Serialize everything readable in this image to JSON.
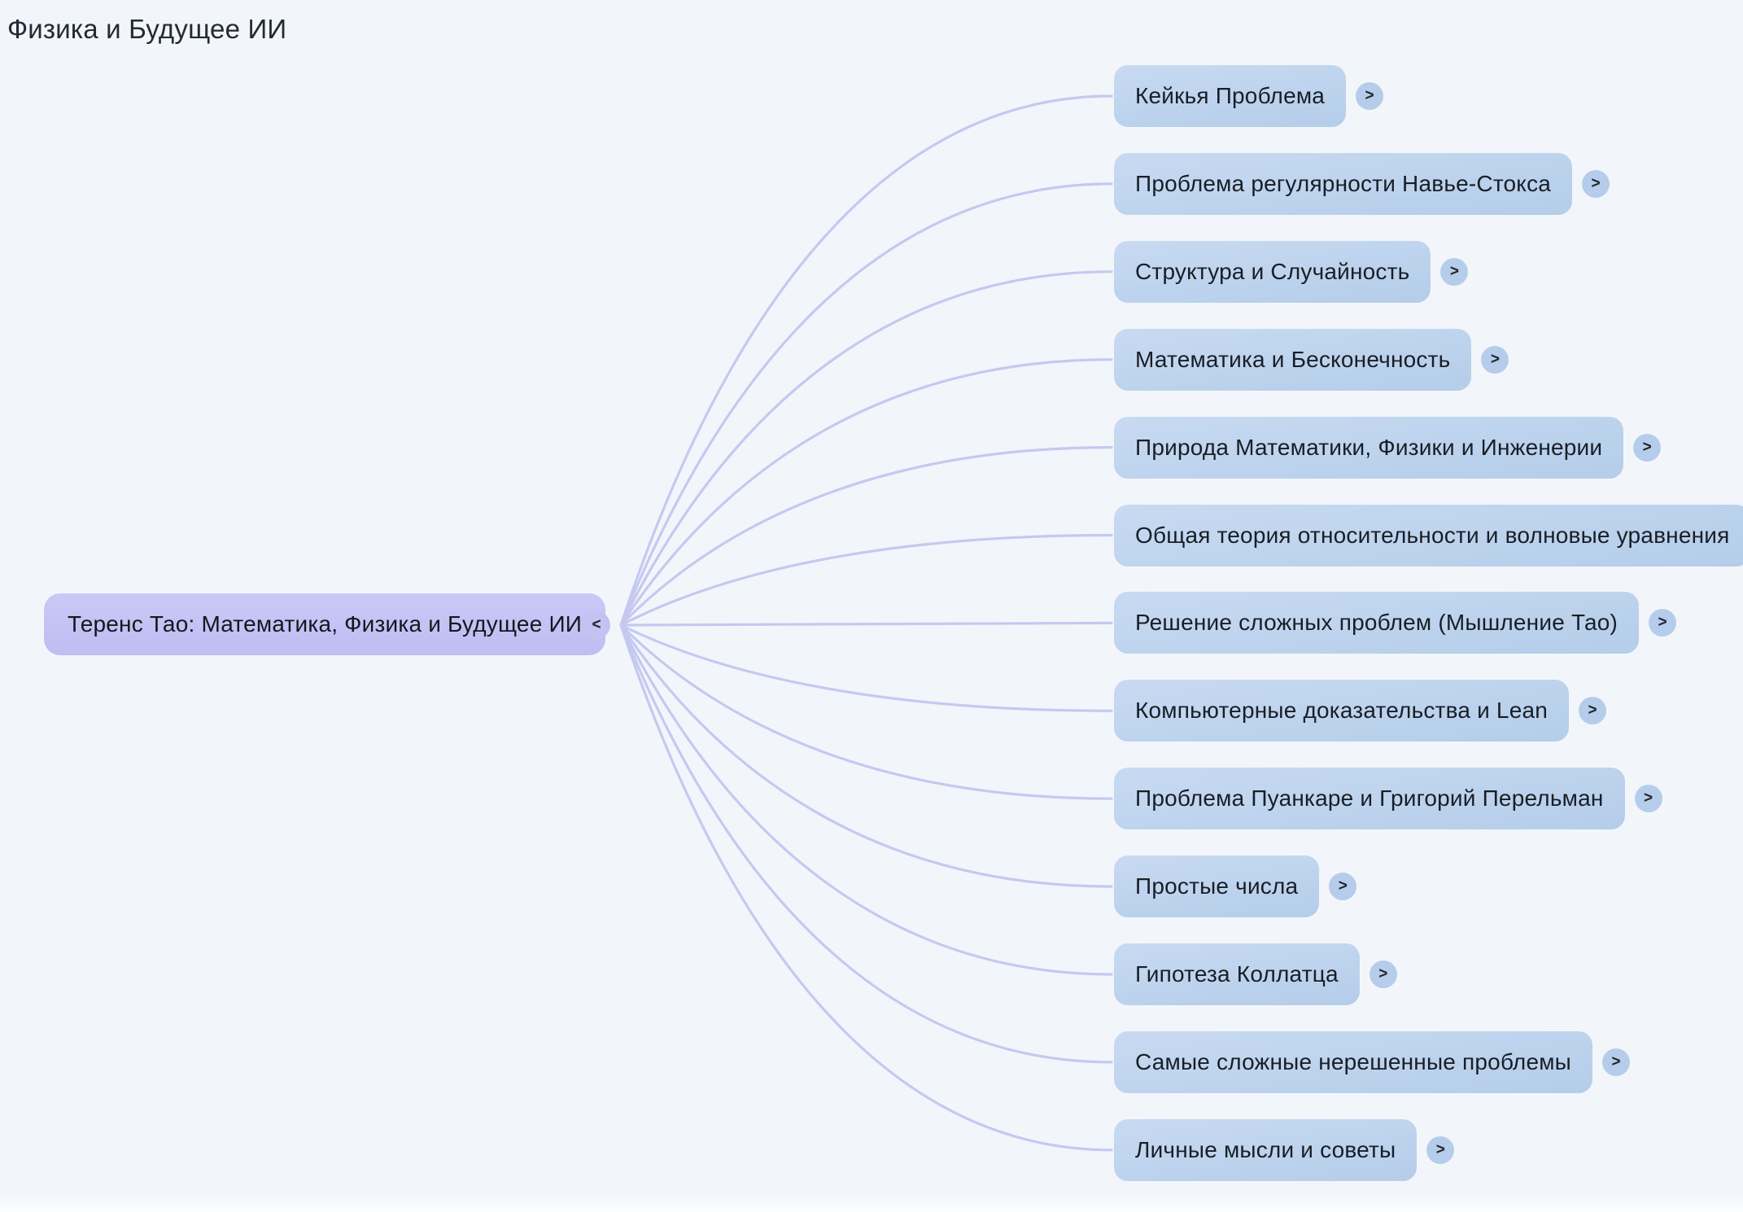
{
  "page": {
    "title": "Физика и Будущее ИИ"
  },
  "mindmap": {
    "root": {
      "label": "Теренс Тао: Математика, Физика и Будущее ИИ",
      "collapse_glyph": "<"
    },
    "expand_glyph": ">",
    "children": [
      {
        "label": "Кейкья Проблема"
      },
      {
        "label": "Проблема регулярности Навье-Стокса"
      },
      {
        "label": "Структура и Случайность"
      },
      {
        "label": "Математика и Бесконечность"
      },
      {
        "label": "Природа Математики, Физики и Инженерии"
      },
      {
        "label": "Общая теория относительности и волновые уравнения"
      },
      {
        "label": "Решение сложных проблем (Мышление Тао)"
      },
      {
        "label": "Компьютерные доказательства и Lean"
      },
      {
        "label": "Проблема Пуанкаре и Григорий Перельман"
      },
      {
        "label": "Простые числа"
      },
      {
        "label": "Гипотеза Коллатца"
      },
      {
        "label": "Самые сложные нерешенные проблемы"
      },
      {
        "label": "Личные мысли и советы"
      }
    ]
  },
  "colors": {
    "background": "#f2f6fb",
    "connector_line": "#c5c9f0",
    "root_node_fill": "#c5c3f4",
    "child_node_fill": "#bcd2ec",
    "expand_button_fill": "#b5cdea",
    "collapse_button_fill": "#c4c2f3",
    "text": "#191e26",
    "title_text": "#242a35"
  }
}
